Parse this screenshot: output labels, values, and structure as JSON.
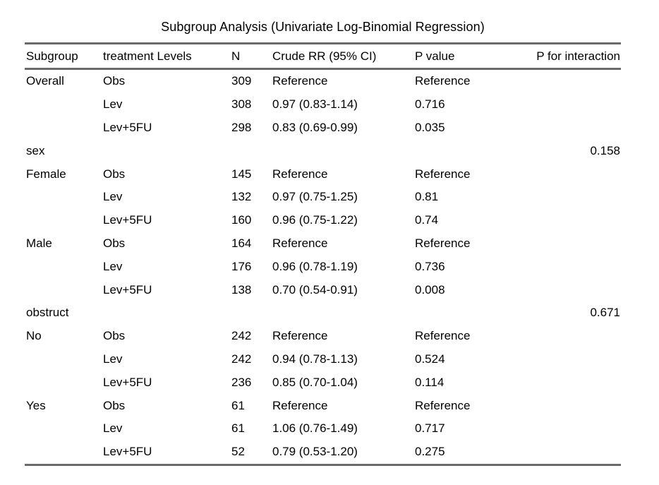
{
  "colors": {
    "background": "#ffffff",
    "text": "#000000",
    "rule": "#6a6a6a"
  },
  "chart_data": {
    "type": "table",
    "title": "Subgroup Analysis (Univariate Log-Binomial Regression)",
    "columns": [
      "Subgroup",
      "treatment Levels",
      "N",
      "Crude RR (95% CI)",
      "P value",
      "P for interaction"
    ],
    "rows": [
      [
        "Overall",
        "Obs",
        "309",
        "Reference",
        "Reference",
        ""
      ],
      [
        "",
        "Lev",
        "308",
        "0.97 (0.83-1.14)",
        "0.716",
        ""
      ],
      [
        "",
        "Lev+5FU",
        "298",
        "0.83 (0.69-0.99)",
        "0.035",
        ""
      ],
      [
        "sex",
        "",
        "",
        "",
        "",
        "0.158"
      ],
      [
        "Female",
        "Obs",
        "145",
        "Reference",
        "Reference",
        ""
      ],
      [
        "",
        "Lev",
        "132",
        "0.97 (0.75-1.25)",
        "0.81",
        ""
      ],
      [
        "",
        "Lev+5FU",
        "160",
        "0.96 (0.75-1.22)",
        "0.74",
        ""
      ],
      [
        "Male",
        "Obs",
        "164",
        "Reference",
        "Reference",
        ""
      ],
      [
        "",
        "Lev",
        "176",
        "0.96 (0.78-1.19)",
        "0.736",
        ""
      ],
      [
        "",
        "Lev+5FU",
        "138",
        "0.70 (0.54-0.91)",
        "0.008",
        ""
      ],
      [
        "obstruct",
        "",
        "",
        "",
        "",
        "0.671"
      ],
      [
        "No",
        "Obs",
        "242",
        "Reference",
        "Reference",
        ""
      ],
      [
        "",
        "Lev",
        "242",
        "0.94 (0.78-1.13)",
        "0.524",
        ""
      ],
      [
        "",
        "Lev+5FU",
        "236",
        "0.85 (0.70-1.04)",
        "0.114",
        ""
      ],
      [
        "Yes",
        "Obs",
        "61",
        "Reference",
        "Reference",
        ""
      ],
      [
        "",
        "Lev",
        "61",
        "1.06 (0.76-1.49)",
        "0.717",
        ""
      ],
      [
        "",
        "Lev+5FU",
        "52",
        "0.79 (0.53-1.20)",
        "0.275",
        ""
      ]
    ]
  }
}
